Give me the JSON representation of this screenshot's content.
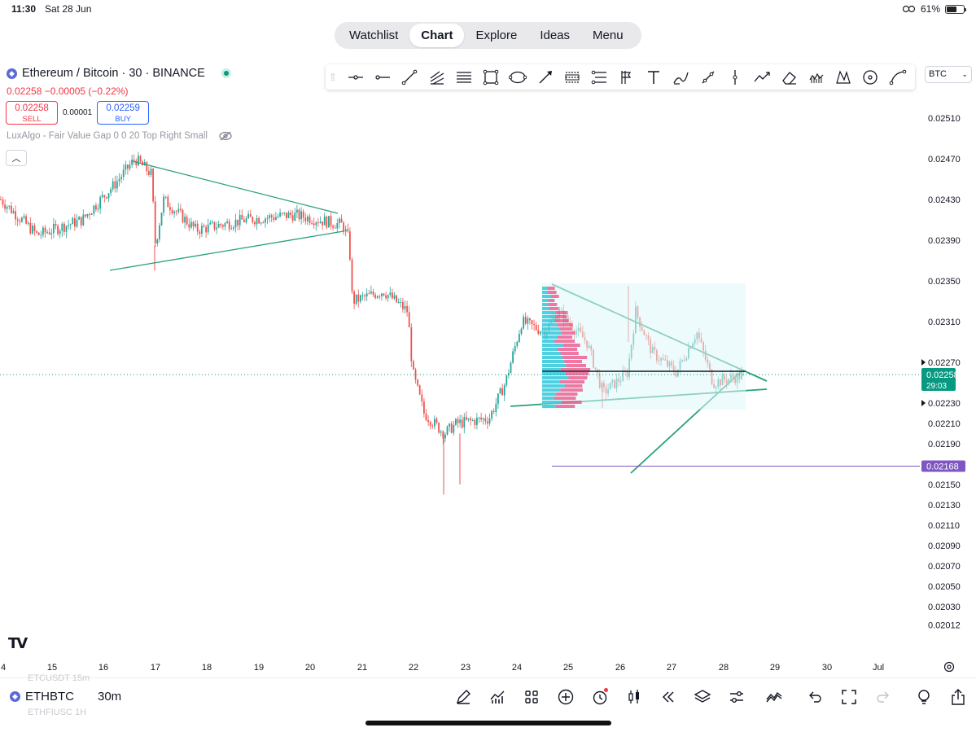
{
  "status_bar": {
    "time": "11:30",
    "date": "Sat 28 Jun",
    "battery": "61%",
    "battery_level": 0.61
  },
  "top_nav": {
    "tabs": [
      {
        "label": "Watchlist",
        "active": false
      },
      {
        "label": "Chart",
        "active": true
      },
      {
        "label": "Explore",
        "active": false
      },
      {
        "label": "Ideas",
        "active": false
      },
      {
        "label": "Menu",
        "active": false
      }
    ]
  },
  "symbol": {
    "title": "Ethereum / Bitcoin · 30 · BINANCE",
    "change": "0.02258 −0.00005 (−0.22%)",
    "sell_price": "0.02258",
    "sell_label": "SELL",
    "spread": "0.00001",
    "buy_price": "0.02259",
    "buy_label": "BUY",
    "indicator": "LuxAlgo - Fair Value Gap 0 0 20 Top Right Small",
    "currency": "BTC"
  },
  "draw_tools": [
    "cross-line",
    "horizontal-ray",
    "trend-line",
    "pitchfork",
    "parallel-channel",
    "rectangle",
    "ellipse",
    "arrow",
    "long-position",
    "short-position",
    "fib-retracement",
    "text",
    "brush",
    "path",
    "vertical-line",
    "polyline",
    "eraser",
    "volume-profile",
    "xabcd-pattern",
    "circle",
    "curve"
  ],
  "chart_data": {
    "type": "candlestick",
    "symbol": "ETHBTC",
    "interval": "30m",
    "price_ticks": [
      "0.02510",
      "0.02470",
      "0.02430",
      "0.02390",
      "0.02350",
      "0.02310",
      "0.02270",
      "0.02230",
      "0.02210",
      "0.02190",
      "0.02150",
      "0.02130",
      "0.02110",
      "0.02090",
      "0.02070",
      "0.02050",
      "0.02030",
      "0.02012"
    ],
    "time_ticks": [
      "4",
      "15",
      "16",
      "17",
      "18",
      "19",
      "20",
      "21",
      "22",
      "23",
      "24",
      "25",
      "26",
      "27",
      "28",
      "29",
      "30",
      "Jul"
    ],
    "last_price": "0.02258",
    "countdown": "29:03",
    "alert_price": "0.02168",
    "colors": {
      "up": "#26a69a",
      "down": "#ef5350",
      "last": "#089981",
      "alert": "#7e57c2",
      "trend": "#26a17b"
    }
  },
  "bottom_bar": {
    "symbol": "ETHBTC",
    "interval": "30m",
    "ghost_top": "ETCUSDT   15m",
    "ghost_bottom": "ETHFIUSC   1H",
    "tools": [
      "draw-icon",
      "indicators-icon",
      "grid-icon",
      "add-icon",
      "alert-icon",
      "candles-icon",
      "replay-icon",
      "layers-icon",
      "settings-sliders-icon",
      "compare-icon",
      "undo-icon",
      "fullscreen-icon",
      "redo-icon",
      "lightbulb-icon",
      "share-icon"
    ]
  }
}
